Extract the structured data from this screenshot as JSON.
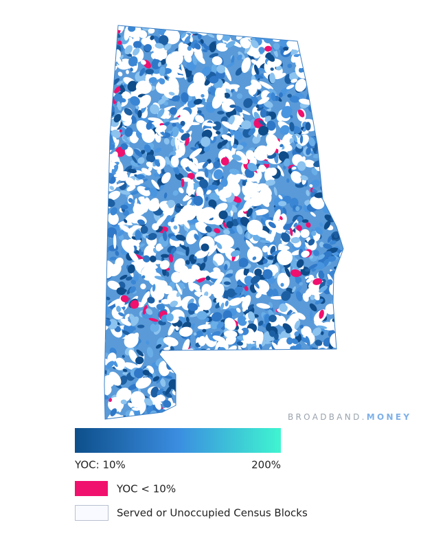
{
  "watermark": {
    "brand": "BROADBAND.",
    "tld": "MONEY"
  },
  "legend": {
    "scale_min": "YOC: 10%",
    "scale_max": "200%",
    "below": "YOC < 10%",
    "served": "Served or Unoccupied Census Blocks"
  }
}
